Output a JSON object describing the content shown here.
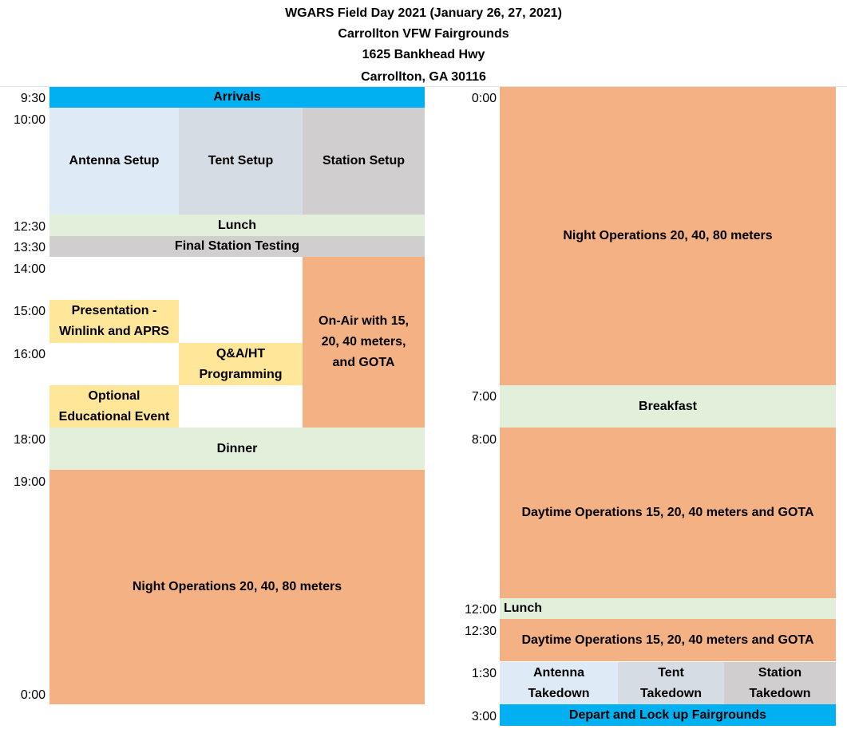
{
  "header": {
    "line1": "WGARS Field Day 2021 (January 26, 27, 2021)",
    "line2": "Carrollton VFW Fairgrounds",
    "line3": "1625 Bankhead Hwy",
    "line4": "Carrollton, GA  30116"
  },
  "colors": {
    "arrivals": "#00b0f0",
    "antenna": "#deebf7",
    "tent": "#d6dce4",
    "station": "#d0cece",
    "meal": "#e2efda",
    "operations": "#f4b183",
    "events": "#ffe699"
  },
  "day1": {
    "times": {
      "t0930": "9:30",
      "t1000": "10:00",
      "t1230": "12:30",
      "t1330": "13:30",
      "t1400": "14:00",
      "t1500": "15:00",
      "t1600": "16:00",
      "t1800": "18:00",
      "t1900": "19:00",
      "t0000": "0:00"
    },
    "arrivals": "Arrivals",
    "antenna_setup": "Antenna Setup",
    "tent_setup": "Tent Setup",
    "station_setup": "Station Setup",
    "lunch": "Lunch",
    "final_testing": "Final Station Testing",
    "presentation_1": "Presentation -",
    "presentation_2": "Winlink and APRS",
    "qa_1": "Q&A/HT",
    "qa_2": "Programming",
    "optional_1": "Optional",
    "optional_2": "Educational Event",
    "onair_1": "On-Air with 15,",
    "onair_2": "20, 40 meters,",
    "onair_3": "and GOTA",
    "dinner": "Dinner",
    "night_ops": "Night Operations 20, 40, 80 meters"
  },
  "day2": {
    "times": {
      "t0000": "0:00",
      "t0700": "7:00",
      "t0800": "8:00",
      "t1200": "12:00",
      "t1230": "12:30",
      "t0130": "1:30",
      "t0300": "3:00"
    },
    "night_ops": "Night Operations 20, 40, 80  meters",
    "breakfast": "Breakfast",
    "day_ops_1": "Daytime Operations 15, 20, 40 meters and GOTA",
    "lunch": "Lunch",
    "day_ops_2": "Daytime Operations 15, 20, 40 meters and GOTA",
    "antenna_1": "Antenna",
    "antenna_2": "Takedown",
    "tent_1": "Tent",
    "tent_2": "Takedown",
    "station_1": "Station",
    "station_2": "Takedown",
    "depart": "Depart and Lock up Fairgrounds"
  }
}
